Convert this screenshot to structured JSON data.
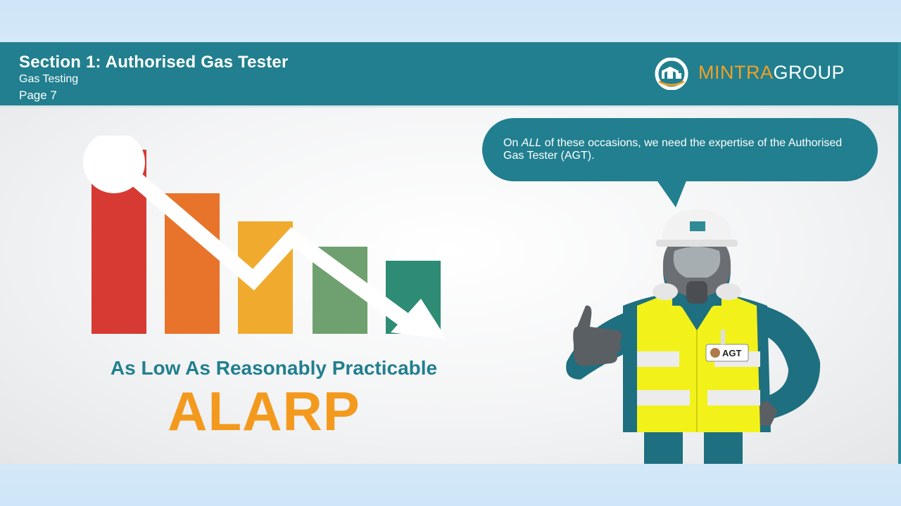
{
  "header": {
    "title": "Section 1: Authorised Gas Tester",
    "subtitle": "Gas Testing",
    "page": "Page 7"
  },
  "logo": {
    "part1": "MINTRA",
    "part2": "GROUP",
    "icon": "mintra-logo-icon"
  },
  "slide": {
    "alarp_full": "As Low As Reasonably Practicable",
    "alarp": "ALARP",
    "bubble_prefix": "On ",
    "bubble_emphasis": "ALL",
    "bubble_rest": " of these occasions, we need the expertise of the Authorised Gas Tester (AGT).",
    "badge": "AGT"
  },
  "colors": {
    "header": "#217f8f",
    "accent_orange": "#f39a1e",
    "bar_colors": [
      "#d63a32",
      "#e8742c",
      "#f0ab2e",
      "#6fa06f",
      "#2e8c75"
    ],
    "vest": "#f2f21a",
    "suit": "#1e6f80"
  },
  "icons": [
    "down-trend-arrow-icon",
    "thumbs-up-icon",
    "gas-mask-icon",
    "hard-hat-icon"
  ]
}
